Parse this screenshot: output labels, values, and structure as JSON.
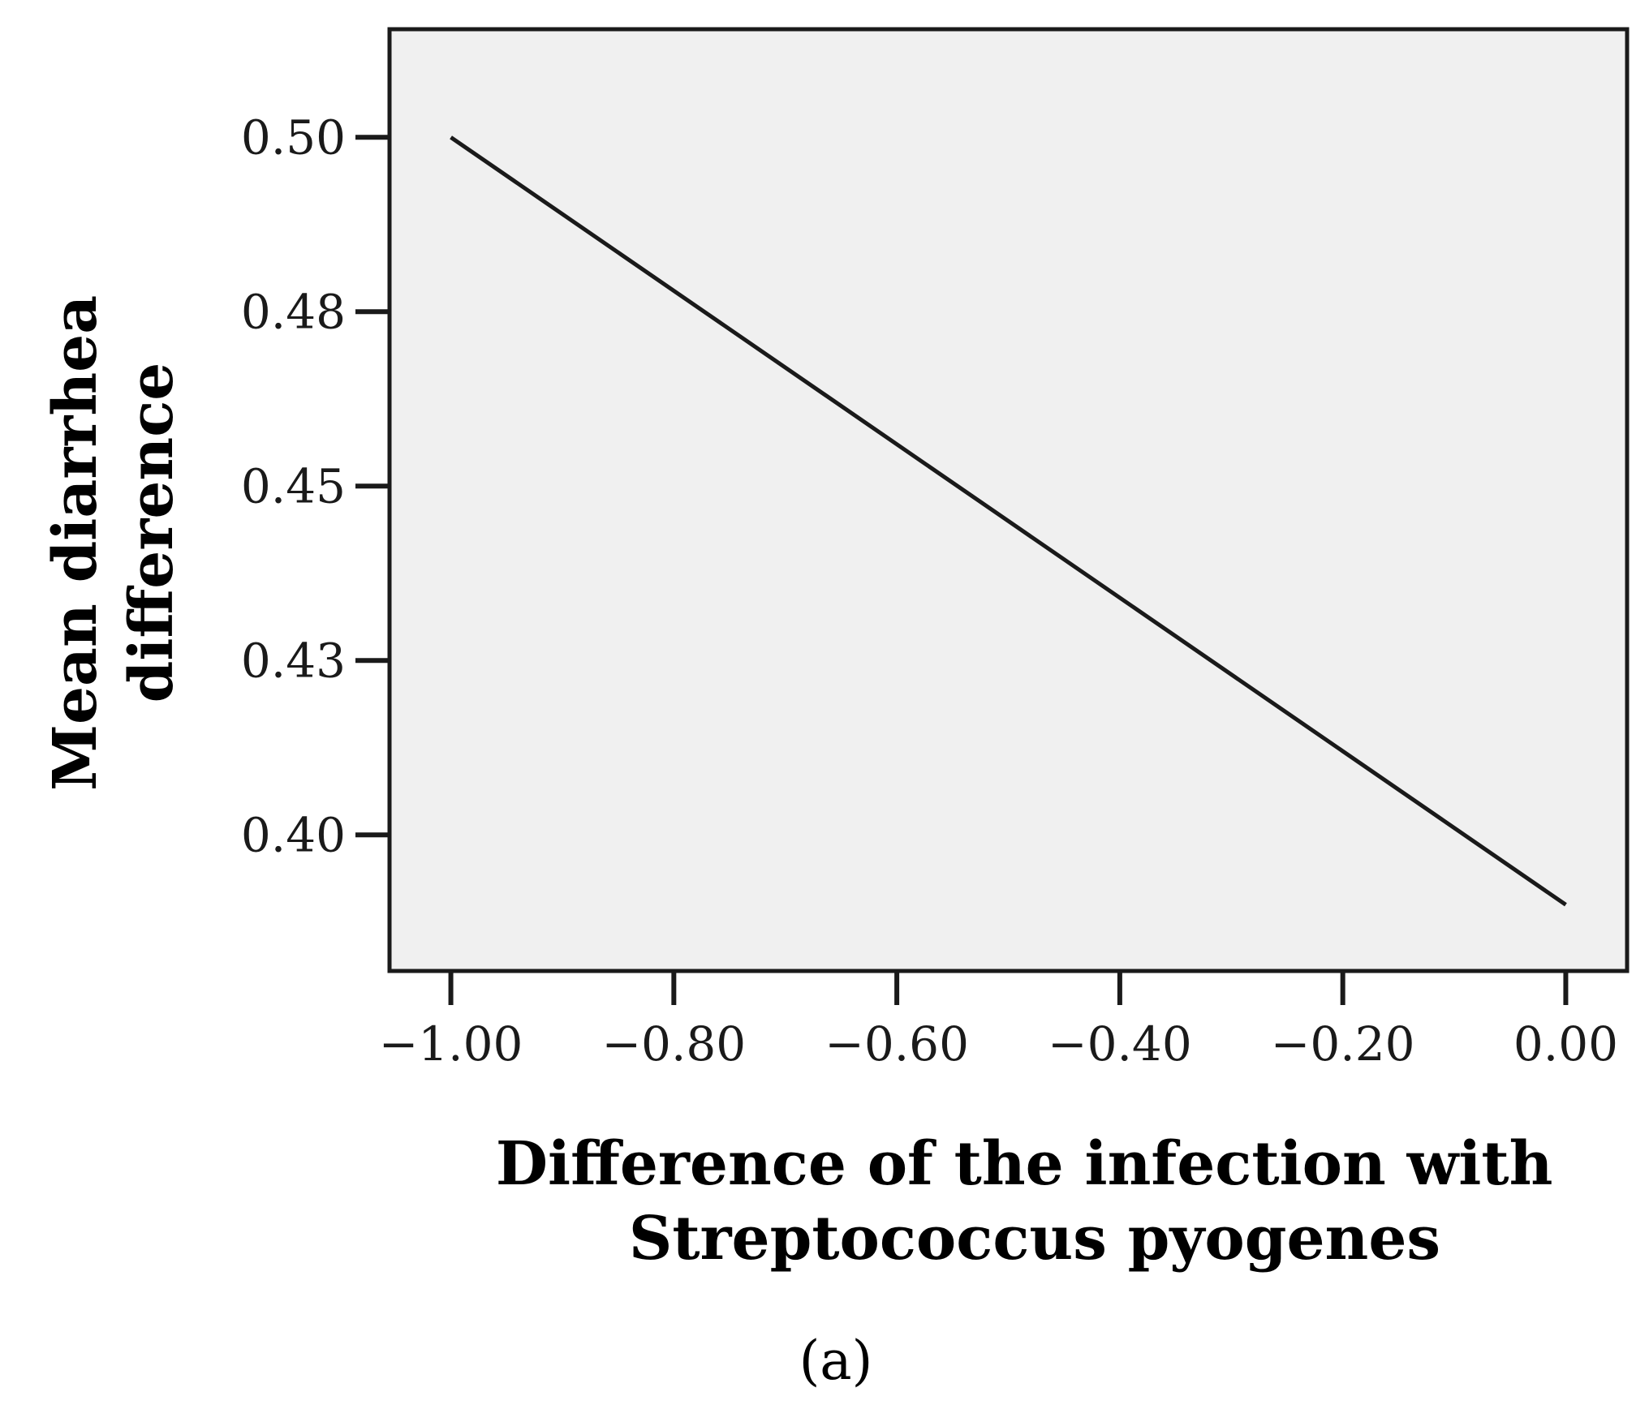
{
  "chart_data": {
    "type": "line",
    "title": "",
    "xlabel": [
      "Difference of the infection with",
      "Streptococcus pyogenes"
    ],
    "ylabel": [
      "Mean diarrhea",
      "difference"
    ],
    "x_ticks": [
      -1.0,
      -0.8,
      -0.6,
      -0.4,
      -0.2,
      0.0
    ],
    "x_tick_labels": [
      "−1.00",
      "−0.80",
      "−0.60",
      "−0.40",
      "−0.20",
      "0.00"
    ],
    "y_ticks": [
      0.4,
      0.425,
      0.45,
      0.475,
      0.5
    ],
    "y_tick_labels": [
      "0.40",
      "0.43",
      "0.45",
      "0.48",
      "0.50"
    ],
    "xlim": [
      -1.055,
      0.055
    ],
    "ylim": [
      0.3805,
      0.5155
    ],
    "grid": false,
    "series": [
      {
        "name": "Mean diarrhea difference",
        "x": [
          -1.0,
          0.0
        ],
        "y": [
          0.5,
          0.39
        ]
      }
    ],
    "panel_label": "(a)",
    "colors": {
      "plot_background": "#f0f0f0",
      "line": "#1a1a1a",
      "axis": "#1a1a1a"
    }
  }
}
